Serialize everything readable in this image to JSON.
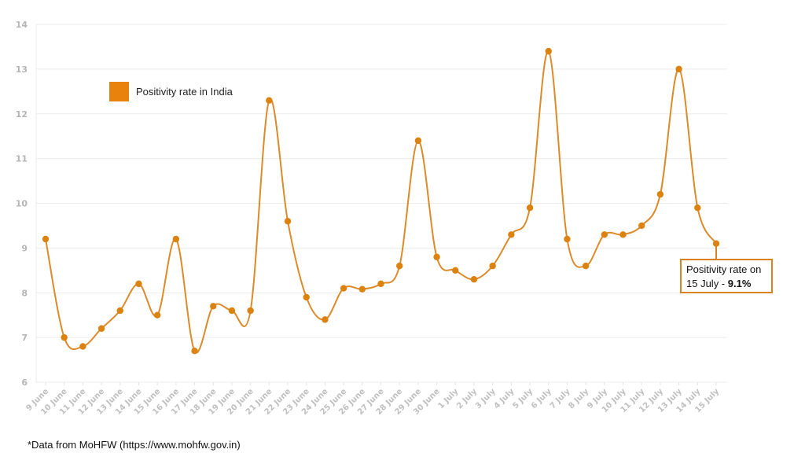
{
  "chart_data": {
    "type": "line",
    "title": "",
    "xlabel": "",
    "ylabel": "",
    "ylim": [
      6,
      14
    ],
    "yticks": [
      6,
      7,
      8,
      9,
      10,
      11,
      12,
      13,
      14
    ],
    "grid": true,
    "legend_position": "top-left",
    "categories": [
      "9 June",
      "10 June",
      "11 June",
      "12 June",
      "13 June",
      "14 June",
      "15 June",
      "16 June",
      "17 June",
      "18 June",
      "19 June",
      "20 June",
      "21 June",
      "22 June",
      "23 June",
      "24 June",
      "25 June",
      "26 June",
      "27 June",
      "28 June",
      "29 June",
      "30 June",
      "1 July",
      "2 July",
      "3 July",
      "4 July",
      "5 July",
      "6 July",
      "7 July",
      "8 July",
      "9 July",
      "10 July",
      "11 July",
      "12 July",
      "13 July",
      "14 July",
      "15 July"
    ],
    "series": [
      {
        "name": "Positivity rate in India",
        "color": "#e8820c",
        "values": [
          9.2,
          7.0,
          6.8,
          7.2,
          7.6,
          8.2,
          7.5,
          9.2,
          6.7,
          7.7,
          7.6,
          7.6,
          12.3,
          9.6,
          7.9,
          7.4,
          8.1,
          8.08,
          8.2,
          8.6,
          11.4,
          8.8,
          8.5,
          8.3,
          8.6,
          9.3,
          9.9,
          13.4,
          9.2,
          8.6,
          9.3,
          9.3,
          9.5,
          10.2,
          13.0,
          9.9,
          9.1
        ]
      }
    ],
    "annotations": [
      {
        "target": "15 July",
        "text_prefix": "Positivity rate on",
        "text_line2": "15 July - ",
        "value_text": "9.1%"
      }
    ]
  },
  "legend": {
    "label": "Positivity rate in India",
    "color": "#e8820c"
  },
  "callout": {
    "line1": "Positivity rate on",
    "line2": "15 July - ",
    "value": "9.1%"
  },
  "footnote": "*Data from MoHFW (https://www.mohfw.gov.in)"
}
